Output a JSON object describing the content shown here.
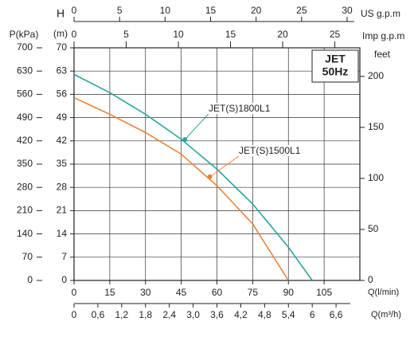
{
  "chart_data": {
    "type": "line",
    "x_label": "Q(l/min)",
    "y_label": [
      "H",
      "(m)"
    ],
    "x": [
      0,
      15,
      30,
      45,
      60,
      75,
      90,
      100
    ],
    "xlim": [
      0,
      120
    ],
    "xticks": [
      0,
      15,
      30,
      45,
      60,
      75,
      90,
      105
    ],
    "ylim": [
      0,
      70
    ],
    "yticks": [
      0,
      7,
      14,
      21,
      28,
      35,
      42,
      49,
      56,
      63,
      70
    ],
    "grid": true,
    "series": [
      {
        "name": "JET(S)1800L1",
        "color": "#2aa59c",
        "values": [
          62,
          56.5,
          50,
          42.5,
          33.5,
          23,
          10,
          0
        ],
        "marker": {
          "x": 46.5,
          "y": 42.4
        }
      },
      {
        "name": "JET(S)1500L1",
        "color": "#e8833a",
        "values": [
          55,
          50,
          44.5,
          38,
          28.5,
          17,
          0,
          null
        ],
        "marker": {
          "x": 57,
          "y": 31.2
        }
      }
    ],
    "badge": [
      "JET",
      "50Hz"
    ],
    "p_axis": {
      "label": "P(kPa)",
      "lim": [
        0,
        700
      ],
      "ticks": [
        0,
        70,
        140,
        210,
        280,
        350,
        420,
        490,
        560,
        630,
        700
      ]
    },
    "feet_axis": {
      "label": "feet",
      "lim": [
        0,
        228
      ],
      "ticks": [
        0,
        50,
        100,
        150,
        200
      ]
    },
    "us_gpm_axis": {
      "label": "US g.p.m",
      "lim": [
        0,
        31.4
      ],
      "ticks": [
        0,
        5,
        10,
        15,
        20,
        25,
        30
      ]
    },
    "imp_gpm_axis": {
      "label": "Imp g.p.m",
      "lim": [
        0,
        27.4
      ],
      "ticks": [
        0,
        5,
        10,
        15,
        20,
        25
      ]
    },
    "m3h_axis": {
      "label": "Q(m³/h)",
      "lim": [
        0,
        7.2
      ],
      "ticks": [
        0,
        {
          "value": 0.6,
          "label": "0,6"
        },
        {
          "value": 1.2,
          "label": "1,2"
        },
        {
          "value": 1.8,
          "label": "1,8"
        },
        {
          "value": 2.4,
          "label": "2,4"
        },
        {
          "value": 3.0,
          "label": "3,0"
        },
        {
          "value": 3.6,
          "label": "3,6"
        },
        {
          "value": 4.2,
          "label": "4,2"
        },
        {
          "value": 4.8,
          "label": "4,8"
        },
        {
          "value": 5.4,
          "label": "5,4"
        },
        {
          "value": 6,
          "label": "6"
        },
        {
          "value": 6.6,
          "label": "6,6"
        }
      ]
    }
  }
}
